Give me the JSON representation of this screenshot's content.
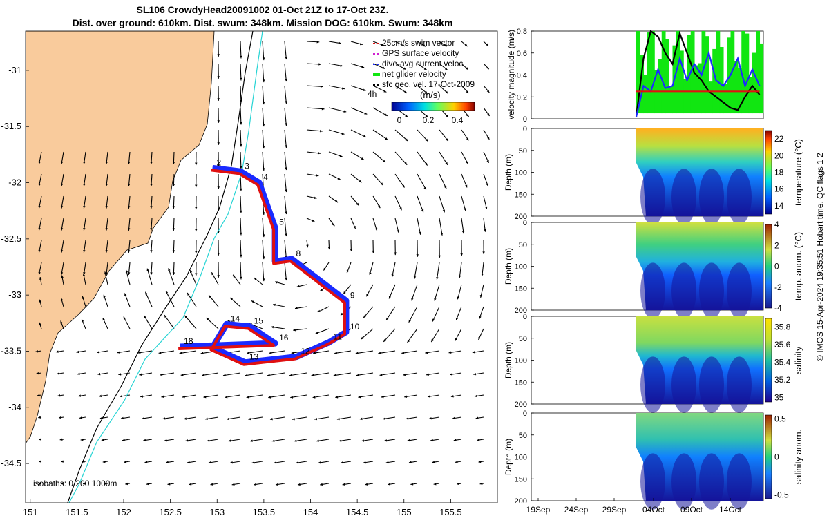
{
  "header": {
    "title_line1": "SL106 CrowdyHead20091002 01-Oct 21Z to 17-Oct 23Z.",
    "title_line2": "Dist. over ground: 610km. Dist. swum: 348km. Mission DOG: 610km. Swum: 348km"
  },
  "credit": "© IMOS 15-Apr-2024 19:35:51 Hobart time. QC flags 1  2",
  "colors": {
    "land": "#f9cb9c",
    "track_blue": "#1a2bff",
    "track_red": "#e01010",
    "isobath_200": "#000000",
    "isobath_1000": "#27d4d4",
    "net_glider": "#11e611",
    "surface_gps": "#d020d0"
  },
  "chart_data": [
    {
      "type": "scatter",
      "panel": "map",
      "title": "",
      "xlabel": "",
      "ylabel": "",
      "xlim": [
        150.95,
        156.0
      ],
      "ylim": [
        -34.85,
        -30.65
      ],
      "xticks": [
        151,
        151.5,
        152,
        152.5,
        153,
        153.5,
        154,
        154.5,
        155,
        155.5
      ],
      "xtick_labels": [
        "151",
        "151.5",
        "152",
        "152.5",
        "153",
        "153.5",
        "154",
        "154.5",
        "155",
        "155.5"
      ],
      "yticks": [
        -31,
        -31.5,
        -32,
        -32.5,
        -33,
        -33.5,
        -34,
        -34.5
      ],
      "ytick_labels": [
        "-31",
        "-31.5",
        "-32",
        "-32.5",
        "-33",
        "-33.5",
        "-34",
        "-34.5"
      ],
      "legend": [
        {
          "label": "25cm/s swim vector",
          "color": "#e01010"
        },
        {
          "label": "GPS surface velocity",
          "color": "#d020d0"
        },
        {
          "label": "dive-avg current veloc",
          "color": "#1a2bff"
        },
        {
          "label": "net glider velocity",
          "color": "#11e611"
        },
        {
          "label": "sfc geo. vel. 17-Oct-2009",
          "color": "#000000"
        }
      ],
      "legend_extra": "4h",
      "colorbar": {
        "title": "(m/s)",
        "ticks": [
          "0",
          "0.2",
          "0.4"
        ],
        "range": [
          0,
          0.5
        ]
      },
      "isobath_label": "isobaths: 0   200  1000m",
      "track": [
        {
          "day": "2",
          "lon": 152.95,
          "lat": -31.87
        },
        {
          "day": "3",
          "lon": 153.25,
          "lat": -31.9
        },
        {
          "day": "4",
          "lon": 153.45,
          "lat": -32.0
        },
        {
          "day": "5",
          "lon": 153.62,
          "lat": -32.4
        },
        {
          "day": "",
          "lon": 153.62,
          "lat": -32.7
        },
        {
          "day": "8",
          "lon": 153.8,
          "lat": -32.68
        },
        {
          "day": "9",
          "lon": 154.38,
          "lat": -33.05
        },
        {
          "day": "10",
          "lon": 154.38,
          "lat": -33.33
        },
        {
          "day": "11",
          "lon": 154.2,
          "lat": -33.42
        },
        {
          "day": "12",
          "lon": 153.85,
          "lat": -33.55
        },
        {
          "day": "13",
          "lon": 153.3,
          "lat": -33.6
        },
        {
          "day": "",
          "lon": 152.95,
          "lat": -33.47
        },
        {
          "day": "14",
          "lon": 153.1,
          "lat": -33.26
        },
        {
          "day": "15",
          "lon": 153.35,
          "lat": -33.28
        },
        {
          "day": "16",
          "lon": 153.62,
          "lat": -33.43
        },
        {
          "day": "18",
          "lon": 152.6,
          "lat": -33.46
        }
      ]
    },
    {
      "type": "line",
      "panel": "velocity",
      "ylabel": "velocity magnitude (m/s)",
      "ylim": [
        0,
        0.8
      ],
      "yticks": [
        0,
        0.2,
        0.4,
        0.6,
        0.8
      ],
      "series": [
        {
          "name": "",
          "color": "#000000",
          "x": [
            1,
            2,
            3,
            4,
            5,
            6,
            7,
            8,
            9,
            10,
            11,
            12,
            13,
            14,
            15,
            16,
            17,
            18
          ],
          "values": [
            0.02,
            0.55,
            0.8,
            0.75,
            0.6,
            0.5,
            0.78,
            0.6,
            0.42,
            0.35,
            0.25,
            0.2,
            0.15,
            0.1,
            0.08,
            0.2,
            0.3,
            0.22
          ]
        },
        {
          "name": "",
          "color": "#1a2bff",
          "x": [
            1,
            2,
            3,
            4,
            5,
            6,
            7,
            8,
            9,
            10,
            11,
            12,
            13,
            14,
            15,
            16,
            17,
            18
          ],
          "values": [
            0.02,
            0.3,
            0.25,
            0.45,
            0.28,
            0.3,
            0.55,
            0.35,
            0.5,
            0.4,
            0.6,
            0.35,
            0.3,
            0.4,
            0.55,
            0.3,
            0.45,
            0.3
          ]
        },
        {
          "name": "",
          "color": "#e01010",
          "x": [
            1,
            2,
            3,
            4,
            5,
            6,
            7,
            8,
            9,
            10,
            11,
            12,
            13,
            14,
            15,
            16,
            17,
            18
          ],
          "values": [
            0.25,
            0.25,
            0.25,
            0.25,
            0.25,
            0.25,
            0.25,
            0.25,
            0.25,
            0.25,
            0.25,
            0.25,
            0.25,
            0.25,
            0.25,
            0.25,
            0.25,
            0.25
          ]
        }
      ]
    },
    {
      "type": "heatmap",
      "panel": "temperature",
      "ylabel": "Depth (m)",
      "colorbar_label": "temperature (°C)",
      "colorbar_ticks": [
        "14",
        "16",
        "18",
        "20",
        "22"
      ],
      "range": [
        13,
        23
      ],
      "yticks": [
        "0",
        "50",
        "100",
        "150",
        "200"
      ]
    },
    {
      "type": "heatmap",
      "panel": "temp_anom",
      "ylabel": "Depth (m)",
      "colorbar_label": "temp. anom. (°C)",
      "colorbar_ticks": [
        "-4",
        "-2",
        "0",
        "2",
        "4"
      ],
      "range": [
        -4,
        4
      ],
      "yticks": [
        "0",
        "50",
        "100",
        "150",
        "200"
      ]
    },
    {
      "type": "heatmap",
      "panel": "salinity",
      "ylabel": "Depth (m)",
      "colorbar_label": "salinity",
      "colorbar_ticks": [
        "35",
        "35.2",
        "35.4",
        "35.6",
        "35.8"
      ],
      "range": [
        34.95,
        35.9
      ],
      "yticks": [
        "0",
        "50",
        "100",
        "150",
        "200"
      ]
    },
    {
      "type": "heatmap",
      "panel": "salinity_anom",
      "ylabel": "Depth (m)",
      "colorbar_label": "salinity anom.",
      "colorbar_ticks": [
        "-0.5",
        "0",
        "0.5"
      ],
      "range": [
        -0.55,
        0.55
      ],
      "yticks": [
        "0",
        "50",
        "100",
        "150",
        "200"
      ],
      "xtick_labels": [
        "19Sep",
        "24Sep",
        "29Sep",
        "04Oct",
        "09Oct",
        "14Oct"
      ]
    }
  ]
}
